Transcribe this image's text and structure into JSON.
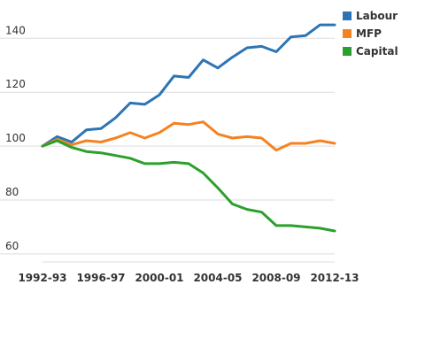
{
  "chart_data": {
    "type": "line",
    "x": [
      "1992-93",
      "1993-94",
      "1994-95",
      "1995-96",
      "1996-97",
      "1997-98",
      "1998-99",
      "1999-00",
      "2000-01",
      "2001-02",
      "2002-03",
      "2003-04",
      "2004-05",
      "2005-06",
      "2006-07",
      "2007-08",
      "2008-09",
      "2009-10",
      "2010-11",
      "2011-12",
      "2012-13"
    ],
    "x_tick_labels": [
      "1992-93",
      "1996-97",
      "2000-01",
      "2004-05",
      "2008-09",
      "2012-13"
    ],
    "y_ticks": [
      60,
      80,
      100,
      120,
      140
    ],
    "ylim": [
      57,
      147
    ],
    "grid": "horizontal",
    "legend_position": "top-right",
    "series": [
      {
        "name": "Labour",
        "color": "#2c75b5",
        "values": [
          100,
          103.5,
          101.5,
          106,
          106.5,
          110.5,
          116,
          115.5,
          119,
          126,
          125.5,
          132,
          129,
          133,
          136.5,
          137,
          135,
          140.5,
          141,
          145,
          145
        ]
      },
      {
        "name": "MFP",
        "color": "#f58220",
        "values": [
          100,
          102.5,
          100.5,
          102,
          101.5,
          103,
          105,
          103,
          105,
          108.5,
          108,
          109,
          104.5,
          103,
          103.5,
          103,
          98.5,
          101,
          101,
          102,
          101
        ]
      },
      {
        "name": "Capital",
        "color": "#2ca02c",
        "values": [
          100,
          102,
          99.5,
          98,
          97.5,
          96.5,
          95.5,
          93.5,
          93.5,
          94,
          93.5,
          90,
          84.5,
          78.5,
          76.5,
          75.5,
          70.5,
          70.5,
          70,
          69.5,
          68.5
        ]
      }
    ]
  }
}
